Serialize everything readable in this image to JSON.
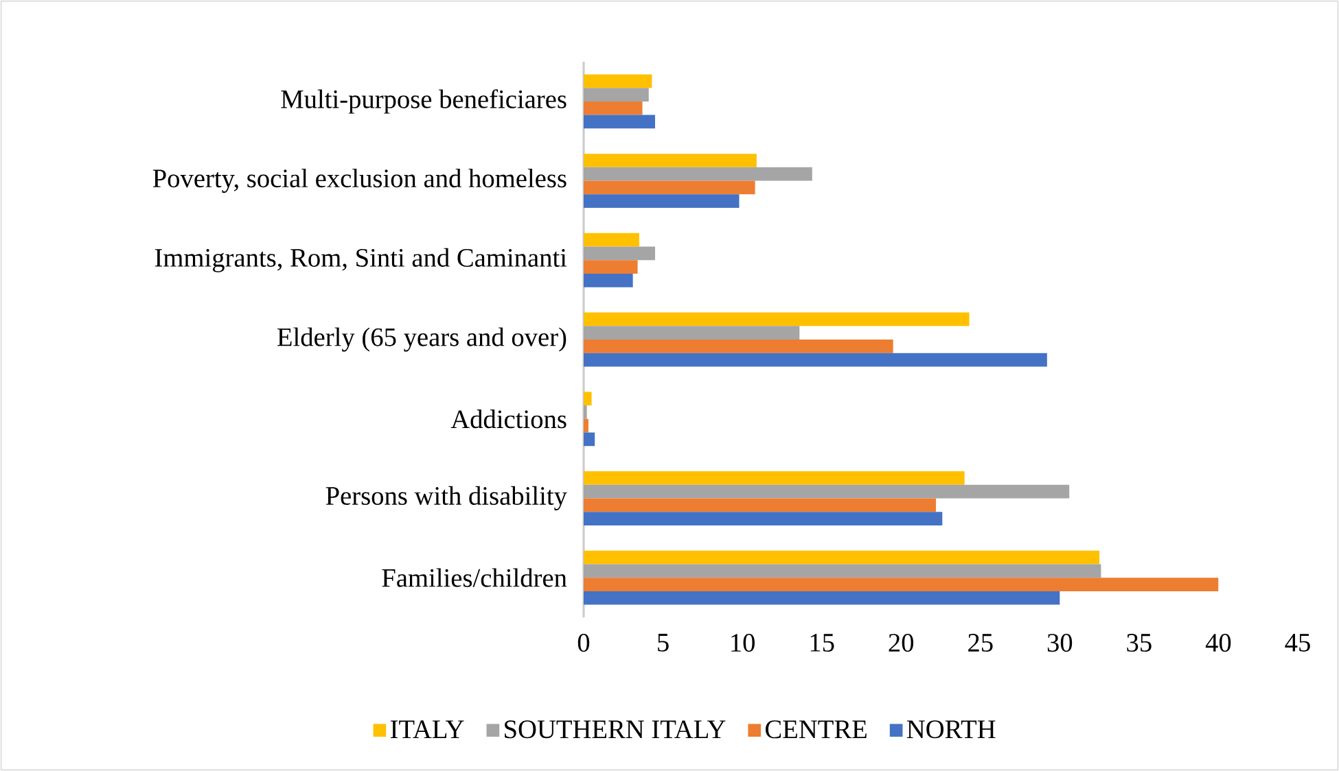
{
  "chart_data": {
    "type": "bar",
    "orientation": "horizontal",
    "categories": [
      "Multi-purpose beneficiares",
      "Poverty, social exclusion and homeless",
      "Immigrants, Rom, Sinti and Caminanti",
      "Elderly (65 years and over)",
      "Addictions",
      "Persons with disability",
      "Families/children"
    ],
    "series": [
      {
        "name": "ITALY",
        "color": "#ffc000",
        "values": [
          4.3,
          10.9,
          3.5,
          24.3,
          0.5,
          24.0,
          32.5
        ]
      },
      {
        "name": "SOUTHERN ITALY",
        "color": "#a5a5a5",
        "values": [
          4.1,
          14.4,
          4.5,
          13.6,
          0.2,
          30.6,
          32.6
        ]
      },
      {
        "name": "CENTRE",
        "color": "#ed7d31",
        "values": [
          3.7,
          10.8,
          3.4,
          19.5,
          0.3,
          22.2,
          40.0
        ]
      },
      {
        "name": "NORTH",
        "color": "#4472c4",
        "values": [
          4.5,
          9.8,
          3.1,
          29.2,
          0.7,
          22.6,
          30.0
        ]
      }
    ],
    "xlim": [
      0,
      45
    ],
    "xticks": [
      0,
      5,
      10,
      15,
      20,
      25,
      30,
      35,
      40,
      45
    ],
    "grid": false,
    "legend": "bottom"
  }
}
